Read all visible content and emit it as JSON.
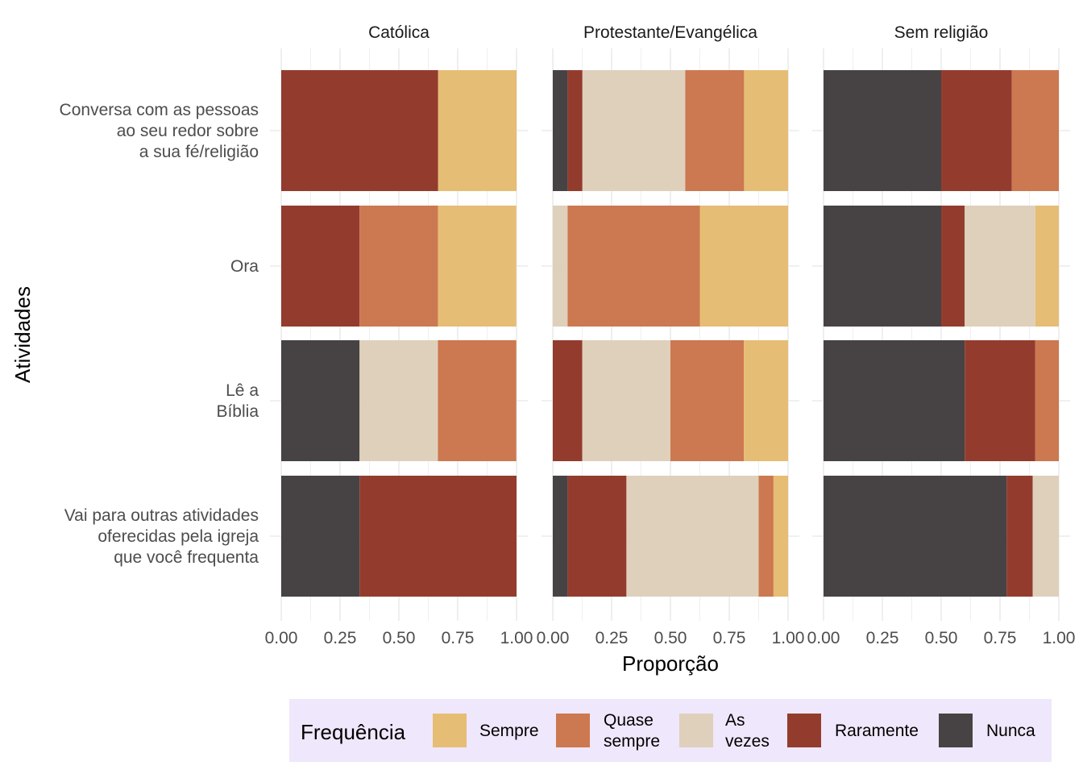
{
  "chart_data": {
    "type": "bar",
    "orientation": "horizontal",
    "stacked": true,
    "xlabel": "Proporção",
    "ylabel": "Atividades",
    "xlim": [
      0,
      1
    ],
    "x_ticks": [
      "0.00",
      "0.25",
      "0.50",
      "0.75",
      "1.00"
    ],
    "grid": true,
    "legend_title": "Frequência",
    "legend_position": "bottom",
    "categories": [
      [
        "Conversa com as pessoas",
        "ao seu redor sobre",
        "a sua fé/religião"
      ],
      [
        "Ora"
      ],
      [
        "Lê a",
        "Bíblia"
      ],
      [
        "Vai para outras atividades",
        "oferecidas pela igreja",
        "que você frequenta"
      ]
    ],
    "series": [
      {
        "key": "nunca",
        "name": [
          "Nunca"
        ],
        "color": "#474344"
      },
      {
        "key": "raramente",
        "name": [
          "Raramente"
        ],
        "color": "#933c2e"
      },
      {
        "key": "as_vezes",
        "name": [
          "As",
          "vezes"
        ],
        "color": "#dfd0bc"
      },
      {
        "key": "quase_sempre",
        "name": [
          "Quase",
          "sempre"
        ],
        "color": "#cc7850"
      },
      {
        "key": "sempre",
        "name": [
          "Sempre"
        ],
        "color": "#e6bd75"
      }
    ],
    "legend_order": [
      "sempre",
      "quase_sempre",
      "as_vezes",
      "raramente",
      "nunca"
    ],
    "facets": [
      {
        "title": "Católica",
        "values": {
          "nunca": [
            0,
            0,
            0.333,
            0.333
          ],
          "raramente": [
            0.667,
            0.333,
            0,
            0.667
          ],
          "as_vezes": [
            0,
            0,
            0.333,
            0
          ],
          "quase_sempre": [
            0,
            0.333,
            0.333,
            0
          ],
          "sempre": [
            0.333,
            0.333,
            0,
            0
          ]
        }
      },
      {
        "title": "Protestante/Evangélica",
        "values": {
          "nunca": [
            0.063,
            0,
            0,
            0.063
          ],
          "raramente": [
            0.063,
            0,
            0.125,
            0.25
          ],
          "as_vezes": [
            0.437,
            0.063,
            0.375,
            0.562
          ],
          "quase_sempre": [
            0.25,
            0.562,
            0.312,
            0.063
          ],
          "sempre": [
            0.187,
            0.375,
            0.188,
            0.062
          ]
        }
      },
      {
        "title": "Sem religião",
        "values": {
          "nunca": [
            0.5,
            0.5,
            0.6,
            0.778
          ],
          "raramente": [
            0.3,
            0.1,
            0.3,
            0.111
          ],
          "as_vezes": [
            0,
            0.3,
            0,
            0.111
          ],
          "quase_sempre": [
            0.2,
            0,
            0.1,
            0
          ],
          "sempre": [
            0,
            0.1,
            0,
            0
          ]
        }
      }
    ]
  }
}
